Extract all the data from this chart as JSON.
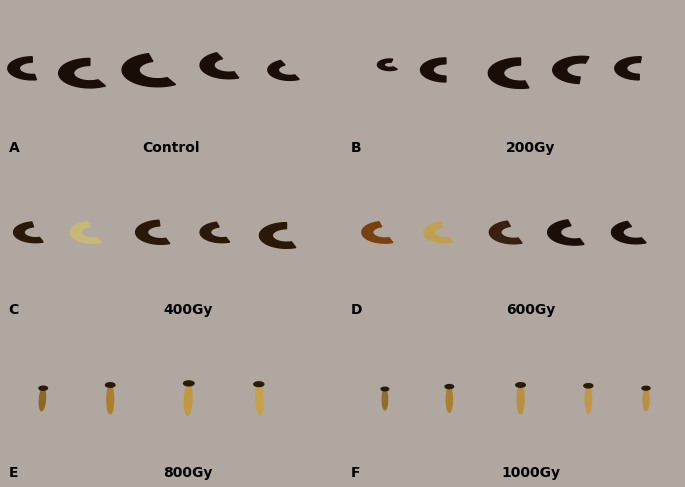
{
  "panels": [
    {
      "label": "A",
      "title": "Control",
      "row": 0,
      "col": 0,
      "bg": "#cfc8c0"
    },
    {
      "label": "B",
      "title": "200Gy",
      "row": 0,
      "col": 1,
      "bg": "#cac4be"
    },
    {
      "label": "C",
      "title": "400Gy",
      "row": 1,
      "col": 0,
      "bg": "#c8c2a8"
    },
    {
      "label": "D",
      "title": "600Gy",
      "row": 1,
      "col": 1,
      "bg": "#c8c2a8"
    },
    {
      "label": "E",
      "title": "800Gy",
      "row": 2,
      "col": 0,
      "bg": "#d0cab0"
    },
    {
      "label": "F",
      "title": "1000Gy",
      "row": 2,
      "col": 1,
      "bg": "#d0cab0"
    }
  ],
  "fig_width": 6.85,
  "fig_height": 4.87,
  "dpi": 100,
  "label_fontsize": 10,
  "title_fontsize": 10
}
